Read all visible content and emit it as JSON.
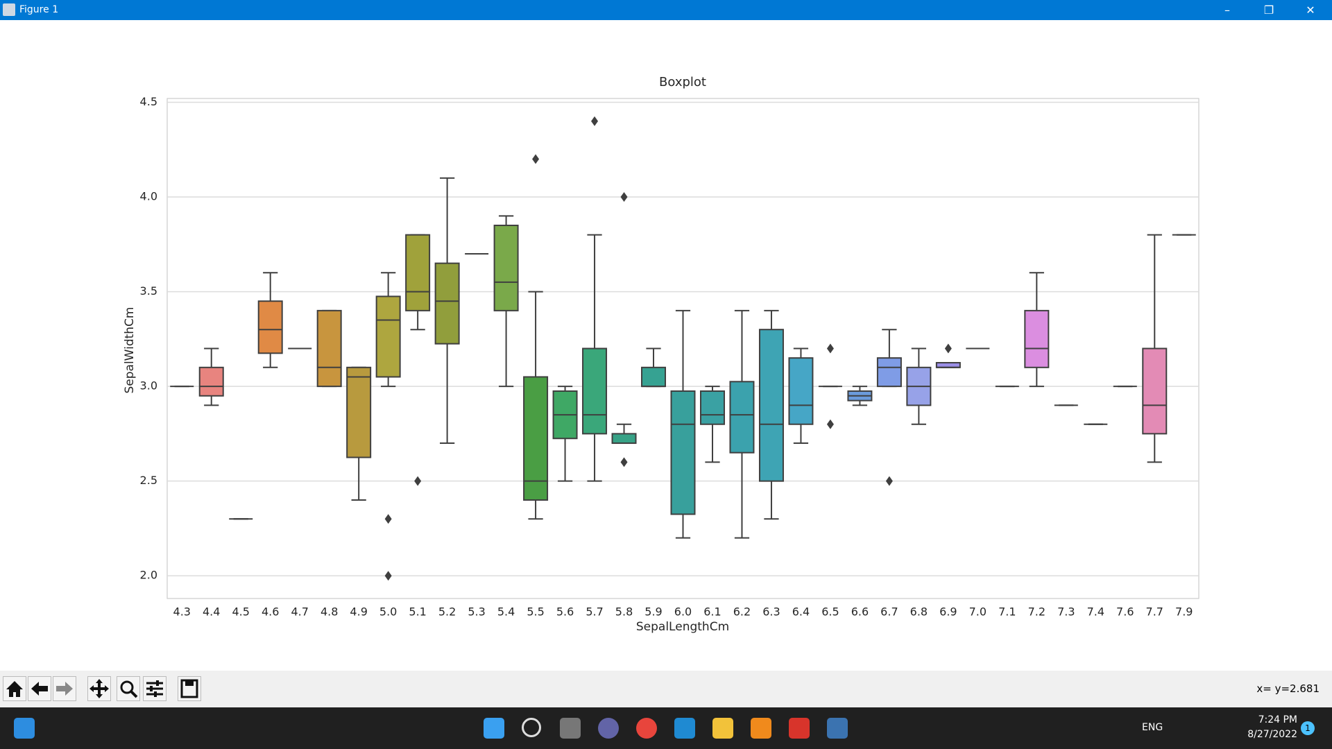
{
  "window": {
    "title": "Figure 1"
  },
  "chart_data": {
    "type": "box",
    "title": "Boxplot",
    "x_label": "SepalLengthCm",
    "y_label": "SepalWidthCm",
    "categories": [
      "4.3",
      "4.4",
      "4.5",
      "4.6",
      "4.7",
      "4.8",
      "4.9",
      "5.0",
      "5.1",
      "5.2",
      "5.3",
      "5.4",
      "5.5",
      "5.6",
      "5.7",
      "5.8",
      "5.9",
      "6.0",
      "6.1",
      "6.2",
      "6.3",
      "6.4",
      "6.5",
      "6.6",
      "6.7",
      "6.8",
      "6.9",
      "7.0",
      "7.1",
      "7.2",
      "7.3",
      "7.4",
      "7.6",
      "7.7",
      "7.9"
    ],
    "boxes": [
      {
        "whislo": 3.0,
        "q1": 3.0,
        "med": 3.0,
        "q3": 3.0,
        "whishi": 3.0,
        "fliers": [],
        "color": "#e0766e"
      },
      {
        "whislo": 2.9,
        "q1": 2.95,
        "med": 3.0,
        "q3": 3.1,
        "whishi": 3.2,
        "fliers": [],
        "color": "#e8847f"
      },
      {
        "whislo": 2.3,
        "q1": 2.3,
        "med": 2.3,
        "q3": 2.3,
        "whishi": 2.3,
        "fliers": [],
        "color": "#dc7a54"
      },
      {
        "whislo": 3.1,
        "q1": 3.175,
        "med": 3.3,
        "q3": 3.45,
        "whishi": 3.6,
        "fliers": [],
        "color": "#e08a45"
      },
      {
        "whislo": 3.2,
        "q1": 3.2,
        "med": 3.2,
        "q3": 3.2,
        "whishi": 3.2,
        "fliers": [],
        "color": "#d19136"
      },
      {
        "whislo": 3.0,
        "q1": 3.0,
        "med": 3.1,
        "q3": 3.4,
        "whishi": 3.4,
        "fliers": [],
        "color": "#c8953e"
      },
      {
        "whislo": 2.4,
        "q1": 2.625,
        "med": 3.05,
        "q3": 3.1,
        "whishi": 3.1,
        "fliers": [],
        "color": "#b89a3e"
      },
      {
        "whislo": 3.0,
        "q1": 3.05,
        "med": 3.35,
        "q3": 3.475,
        "whishi": 3.6,
        "fliers": [
          2.3,
          2.0
        ],
        "color": "#aea63f"
      },
      {
        "whislo": 3.3,
        "q1": 3.4,
        "med": 3.5,
        "q3": 3.8,
        "whishi": 3.8,
        "fliers": [
          2.5
        ],
        "color": "#a0a23b"
      },
      {
        "whislo": 2.7,
        "q1": 3.225,
        "med": 3.45,
        "q3": 3.65,
        "whishi": 4.1,
        "fliers": [],
        "color": "#919e3c"
      },
      {
        "whislo": 3.7,
        "q1": 3.7,
        "med": 3.7,
        "q3": 3.7,
        "whishi": 3.7,
        "fliers": [],
        "color": "#83a03c"
      },
      {
        "whislo": 3.0,
        "q1": 3.4,
        "med": 3.55,
        "q3": 3.85,
        "whishi": 3.9,
        "fliers": [],
        "color": "#7aa94a"
      },
      {
        "whislo": 2.3,
        "q1": 2.4,
        "med": 2.5,
        "q3": 3.05,
        "whishi": 3.5,
        "fliers": [
          4.2
        ],
        "color": "#4a9e44"
      },
      {
        "whislo": 2.5,
        "q1": 2.725,
        "med": 2.85,
        "q3": 2.975,
        "whishi": 3.0,
        "fliers": [],
        "color": "#3fa865"
      },
      {
        "whislo": 2.5,
        "q1": 2.75,
        "med": 2.85,
        "q3": 3.2,
        "whishi": 3.8,
        "fliers": [
          4.4
        ],
        "color": "#3aa77a"
      },
      {
        "whislo": 2.7,
        "q1": 2.7,
        "med": 2.7,
        "q3": 2.75,
        "whishi": 2.8,
        "fliers": [
          2.6,
          4.0
        ],
        "color": "#37a286"
      },
      {
        "whislo": 3.0,
        "q1": 3.0,
        "med": 3.0,
        "q3": 3.1,
        "whishi": 3.2,
        "fliers": [],
        "color": "#36a292"
      },
      {
        "whislo": 2.2,
        "q1": 2.325,
        "med": 2.8,
        "q3": 2.975,
        "whishi": 3.4,
        "fliers": [],
        "color": "#38a09c"
      },
      {
        "whislo": 2.6,
        "q1": 2.8,
        "med": 2.85,
        "q3": 2.975,
        "whishi": 3.0,
        "fliers": [],
        "color": "#3aa1a3"
      },
      {
        "whislo": 2.2,
        "q1": 2.65,
        "med": 2.85,
        "q3": 3.025,
        "whishi": 3.4,
        "fliers": [],
        "color": "#3ba2ad"
      },
      {
        "whislo": 2.3,
        "q1": 2.5,
        "med": 2.8,
        "q3": 3.3,
        "whishi": 3.4,
        "fliers": [],
        "color": "#3ea4b4"
      },
      {
        "whislo": 2.7,
        "q1": 2.8,
        "med": 2.9,
        "q3": 3.15,
        "whishi": 3.2,
        "fliers": [],
        "color": "#46a6c6"
      },
      {
        "whislo": 3.0,
        "q1": 3.0,
        "med": 3.0,
        "q3": 3.0,
        "whishi": 3.0,
        "fliers": [
          3.2,
          2.8
        ],
        "color": "#55a0d2"
      },
      {
        "whislo": 2.9,
        "q1": 2.925,
        "med": 2.95,
        "q3": 2.975,
        "whishi": 3.0,
        "fliers": [],
        "color": "#6b9bdb"
      },
      {
        "whislo": 3.0,
        "q1": 3.0,
        "med": 3.1,
        "q3": 3.15,
        "whishi": 3.3,
        "fliers": [
          2.5
        ],
        "color": "#7f9ce6"
      },
      {
        "whislo": 2.8,
        "q1": 2.9,
        "med": 3.0,
        "q3": 3.1,
        "whishi": 3.2,
        "fliers": [],
        "color": "#97a2e8"
      },
      {
        "whislo": 3.1,
        "q1": 3.1,
        "med": 3.1,
        "q3": 3.125,
        "whishi": 3.125,
        "fliers": [
          3.2
        ],
        "color": "#9b8ee6"
      },
      {
        "whislo": 3.2,
        "q1": 3.2,
        "med": 3.2,
        "q3": 3.2,
        "whishi": 3.2,
        "fliers": [],
        "color": "#ad8be6"
      },
      {
        "whislo": 3.0,
        "q1": 3.0,
        "med": 3.0,
        "q3": 3.0,
        "whishi": 3.0,
        "fliers": [],
        "color": "#bd88e6"
      },
      {
        "whislo": 3.0,
        "q1": 3.1,
        "med": 3.2,
        "q3": 3.4,
        "whishi": 3.6,
        "fliers": [],
        "color": "#db8ee0"
      },
      {
        "whislo": 2.9,
        "q1": 2.9,
        "med": 2.9,
        "q3": 2.9,
        "whishi": 2.9,
        "fliers": [],
        "color": "#df83d2"
      },
      {
        "whislo": 2.8,
        "q1": 2.8,
        "med": 2.8,
        "q3": 2.8,
        "whishi": 2.8,
        "fliers": [],
        "color": "#e07fc2"
      },
      {
        "whislo": 3.0,
        "q1": 3.0,
        "med": 3.0,
        "q3": 3.0,
        "whishi": 3.0,
        "fliers": [],
        "color": "#e47cb3"
      },
      {
        "whislo": 2.6,
        "q1": 2.75,
        "med": 2.9,
        "q3": 3.2,
        "whishi": 3.8,
        "fliers": [],
        "color": "#e38bb5"
      },
      {
        "whislo": 3.8,
        "q1": 3.8,
        "med": 3.8,
        "q3": 3.8,
        "whishi": 3.8,
        "fliers": [],
        "color": "#e57f9c"
      }
    ],
    "edge_color": "#3f3f3f",
    "ylim": [
      1.88,
      4.52
    ],
    "yticks": [
      {
        "value": 2,
        "label": "2.0"
      },
      {
        "value": 2.5,
        "label": "2.5"
      },
      {
        "value": 3,
        "label": "3.0"
      },
      {
        "value": 3.5,
        "label": "3.5"
      },
      {
        "value": 4,
        "label": "4.0"
      },
      {
        "value": 4.5,
        "label": "4.5"
      }
    ],
    "grid": true
  },
  "toolbar": {
    "status": "x= y=2.681"
  },
  "taskbar": {
    "language": "ENG",
    "time": "7:24 PM",
    "date": "8/27/2022",
    "notifications": "1"
  }
}
